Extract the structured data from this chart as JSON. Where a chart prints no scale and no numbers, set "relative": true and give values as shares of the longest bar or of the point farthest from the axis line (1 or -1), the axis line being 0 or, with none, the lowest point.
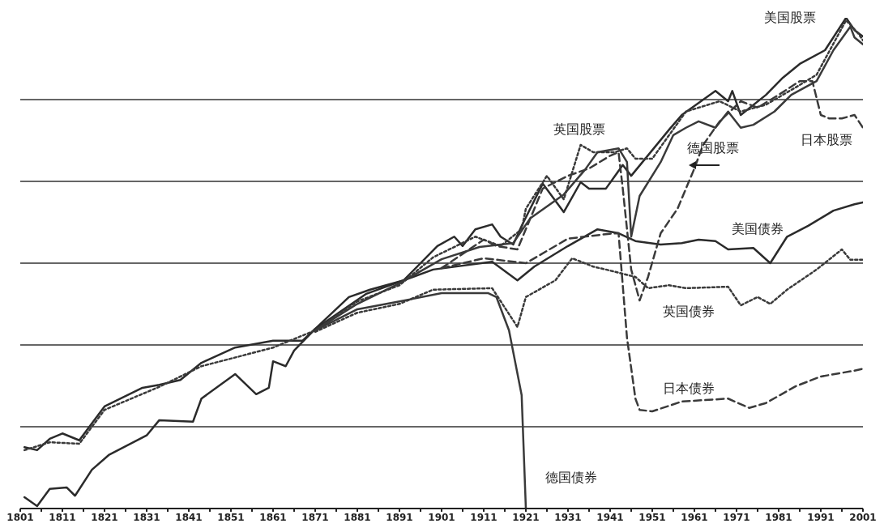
{
  "chart_data": {
    "type": "line",
    "relative": true,
    "grid": "y",
    "xlim": [
      1801,
      2001
    ],
    "xticks": [
      1801,
      {
        "value": 1806,
        "label": null
      },
      1811,
      {
        "value": 1816,
        "label": null
      },
      1821,
      {
        "value": 1826,
        "label": null
      },
      1831,
      {
        "value": 1836,
        "label": null
      },
      1841,
      {
        "value": 1846,
        "label": null
      },
      1851,
      {
        "value": 1856,
        "label": null
      },
      1861,
      {
        "value": 1866,
        "label": null
      },
      1871,
      {
        "value": 1876,
        "label": null
      },
      1881,
      {
        "value": 1886,
        "label": null
      },
      1891,
      {
        "value": 1896,
        "label": null
      },
      1901,
      {
        "value": 1906,
        "label": null
      },
      1911,
      {
        "value": 1916,
        "label": null
      },
      1921,
      {
        "value": 1926,
        "label": null
      },
      1931,
      {
        "value": 1936,
        "label": null
      },
      1941,
      {
        "value": 1946,
        "label": null
      },
      1951,
      {
        "value": 1956,
        "label": null
      },
      1961,
      {
        "value": 1966,
        "label": null
      },
      1971,
      {
        "value": 1976,
        "label": null
      },
      1981,
      {
        "value": 1986,
        "label": null
      },
      1991,
      {
        "value": 1996,
        "label": null
      },
      2001
    ],
    "series": [
      {
        "name": "美国股票",
        "color": "#2b2b2b",
        "line_style": "solid",
        "x": [
          1802,
          1805,
          1808,
          1812,
          1814,
          1818,
          1822,
          1831,
          1834,
          1842,
          1844,
          1852,
          1857,
          1860,
          1861,
          1864,
          1866,
          1871,
          1879,
          1884,
          1892,
          1900,
          1904,
          1906,
          1909,
          1913,
          1915,
          1918,
          1920,
          1925,
          1930,
          1934,
          1936,
          1940,
          1944,
          1946,
          1955,
          1958,
          1966,
          1969,
          1970,
          1972,
          1978,
          1982,
          1986,
          1992,
          1997,
          1999,
          2001
        ],
        "values": [
          0.023,
          0.005,
          0.04,
          0.043,
          0.026,
          0.079,
          0.109,
          0.149,
          0.18,
          0.177,
          0.224,
          0.274,
          0.233,
          0.246,
          0.3,
          0.29,
          0.322,
          0.366,
          0.431,
          0.446,
          0.465,
          0.535,
          0.554,
          0.535,
          0.569,
          0.579,
          0.554,
          0.538,
          0.576,
          0.662,
          0.604,
          0.665,
          0.652,
          0.652,
          0.7,
          0.678,
          0.772,
          0.802,
          0.851,
          0.83,
          0.851,
          0.802,
          0.843,
          0.878,
          0.906,
          0.934,
          1,
          0.975,
          0.962
        ]
      },
      {
        "name": "美国债券",
        "color": "#2b2b2b",
        "line_style": "solid",
        "x": [
          1802,
          1805,
          1808,
          1811,
          1815,
          1821,
          1830,
          1834,
          1839,
          1844,
          1852,
          1861,
          1868,
          1871,
          1883,
          1899,
          1913,
          1919,
          1923,
          1931,
          1938,
          1943,
          1947,
          1953,
          1958,
          1962,
          1966,
          1969,
          1975,
          1979,
          1983,
          1988,
          1994,
          1999,
          2001
        ],
        "values": [
          0.125,
          0.119,
          0.142,
          0.153,
          0.139,
          0.208,
          0.246,
          0.252,
          0.262,
          0.297,
          0.328,
          0.342,
          0.342,
          0.366,
          0.437,
          0.487,
          0.503,
          0.465,
          0.493,
          0.535,
          0.569,
          0.561,
          0.545,
          0.538,
          0.541,
          0.548,
          0.545,
          0.528,
          0.531,
          0.5,
          0.554,
          0.576,
          0.607,
          0.62,
          0.624
        ]
      },
      {
        "name": "英国股票",
        "color": "#3a3a3a",
        "line_style": "dotted",
        "x": [
          1802,
          1808,
          1815,
          1821,
          1834,
          1844,
          1853,
          1861,
          1871,
          1881,
          1891,
          1899,
          1909,
          1915,
          1920,
          1921,
          1926,
          1930,
          1934,
          1937,
          1942,
          1945,
          1947,
          1951,
          1959,
          1967,
          1972,
          1978,
          1985,
          1990,
          1997,
          2000,
          2001
        ],
        "values": [
          0.119,
          0.135,
          0.132,
          0.201,
          0.248,
          0.29,
          0.31,
          0.328,
          0.363,
          0.422,
          0.455,
          0.512,
          0.554,
          0.535,
          0.569,
          0.611,
          0.678,
          0.63,
          0.741,
          0.726,
          0.726,
          0.734,
          0.713,
          0.713,
          0.809,
          0.83,
          0.809,
          0.823,
          0.858,
          0.884,
          0.995,
          0.967,
          0.954
        ]
      },
      {
        "name": "英国债券",
        "color": "#3a3a3a",
        "line_style": "dotted",
        "x": [
          1871,
          1881,
          1891,
          1899,
          1913,
          1919,
          1921,
          1928,
          1932,
          1937,
          1940,
          1947,
          1950,
          1955,
          1959,
          1969,
          1972,
          1976,
          1979,
          1983,
          1990,
          1996,
          1998,
          2001
        ],
        "values": [
          0.36,
          0.399,
          0.417,
          0.446,
          0.449,
          0.37,
          0.431,
          0.465,
          0.51,
          0.493,
          0.487,
          0.472,
          0.449,
          0.455,
          0.449,
          0.452,
          0.414,
          0.431,
          0.417,
          0.446,
          0.487,
          0.528,
          0.507,
          0.507
        ]
      },
      {
        "name": "德国股票",
        "color": "#3a3a3a",
        "line_style": "solid",
        "x": [
          1871,
          1881,
          1891,
          1901,
          1910,
          1918,
          1922,
          1930,
          1935,
          1938,
          1943,
          1945,
          1946,
          1948,
          1953,
          1956,
          1959,
          1962,
          1966,
          1969,
          1972,
          1975,
          1980,
          1984,
          1990,
          1994,
          1998,
          1999,
          2001
        ],
        "values": [
          0.363,
          0.417,
          0.459,
          0.508,
          0.533,
          0.541,
          0.591,
          0.64,
          0.69,
          0.726,
          0.734,
          0.706,
          0.554,
          0.637,
          0.706,
          0.761,
          0.776,
          0.789,
          0.776,
          0.809,
          0.776,
          0.782,
          0.809,
          0.843,
          0.871,
          0.934,
          0.982,
          0.96,
          0.946
        ]
      },
      {
        "name": "德国债券",
        "color": "#3a3a3a",
        "line_style": "solid",
        "x": [
          1871,
          1881,
          1891,
          1901,
          1912,
          1914,
          1917,
          1920,
          1921
        ],
        "values": [
          0.363,
          0.406,
          0.422,
          0.439,
          0.439,
          0.431,
          0.363,
          0.231,
          0
        ]
      },
      {
        "name": "日本股票",
        "color": "#3a3a3a",
        "line_style": "dashed",
        "x": [
          1901,
          1911,
          1914,
          1919,
          1925,
          1931,
          1936,
          1941,
          1943,
          1944,
          1946,
          1948,
          1950,
          1953,
          1957,
          1961,
          1963,
          1967,
          1972,
          1976,
          1981,
          1986,
          1989,
          1991,
          1993,
          1996,
          1999,
          2001
        ],
        "values": [
          0.49,
          0.548,
          0.535,
          0.528,
          0.652,
          0.678,
          0.693,
          0.719,
          0.726,
          0.652,
          0.487,
          0.424,
          0.472,
          0.561,
          0.611,
          0.693,
          0.74,
          0.789,
          0.83,
          0.817,
          0.843,
          0.871,
          0.871,
          0.802,
          0.795,
          0.795,
          0.802,
          0.776
        ]
      },
      {
        "name": "日本债券",
        "color": "#3a3a3a",
        "line_style": "dashed",
        "x": [
          1901,
          1911,
          1921,
          1931,
          1941,
          1943,
          1945,
          1947,
          1948,
          1951,
          1958,
          1969,
          1974,
          1978,
          1985,
          1991,
          1999,
          2001
        ],
        "values": [
          0.49,
          0.51,
          0.5,
          0.55,
          0.56,
          0.561,
          0.348,
          0.224,
          0.201,
          0.198,
          0.218,
          0.224,
          0.205,
          0.215,
          0.249,
          0.269,
          0.281,
          0.285
        ]
      }
    ]
  }
}
